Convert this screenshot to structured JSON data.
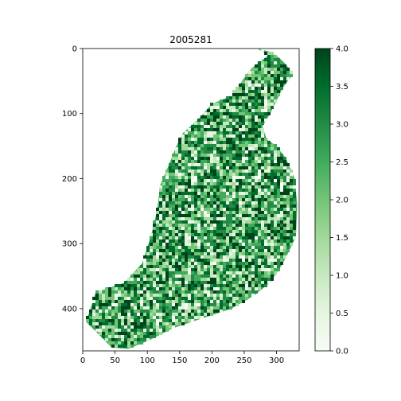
{
  "chart_data": [
    {
      "type": "heatmap",
      "title": "2005281",
      "xlabel": "",
      "ylabel": "",
      "xlim": [
        0,
        335
      ],
      "ylim": [
        465,
        0
      ],
      "xticks": [
        "0",
        "50",
        "100",
        "150",
        "200",
        "250",
        "300"
      ],
      "yticks": [
        "0",
        "100",
        "200",
        "300",
        "400"
      ],
      "grid": false,
      "colormap": "Greens",
      "value_range": [
        0,
        4
      ],
      "colors": {
        "low": "#f7fcf5",
        "mid": "#74c476",
        "high": "#00441b"
      },
      "region_outline_xy": [
        [
          270,
          0
        ],
        [
          288,
          10
        ],
        [
          275,
          20
        ],
        [
          262,
          30
        ],
        [
          250,
          45
        ],
        [
          240,
          60
        ],
        [
          225,
          75
        ],
        [
          200,
          85
        ],
        [
          178,
          110
        ],
        [
          155,
          130
        ],
        [
          145,
          150
        ],
        [
          135,
          175
        ],
        [
          120,
          210
        ],
        [
          115,
          250
        ],
        [
          105,
          290
        ],
        [
          92,
          330
        ],
        [
          65,
          360
        ],
        [
          20,
          375
        ],
        [
          12,
          400
        ],
        [
          5,
          420
        ],
        [
          20,
          435
        ],
        [
          45,
          460
        ],
        [
          70,
          462
        ],
        [
          100,
          450
        ],
        [
          140,
          430
        ],
        [
          185,
          415
        ],
        [
          230,
          400
        ],
        [
          265,
          380
        ],
        [
          290,
          360
        ],
        [
          310,
          330
        ],
        [
          330,
          290
        ],
        [
          332,
          240
        ],
        [
          328,
          200
        ],
        [
          315,
          170
        ],
        [
          300,
          150
        ],
        [
          285,
          140
        ],
        [
          278,
          120
        ],
        [
          290,
          100
        ],
        [
          300,
          80
        ],
        [
          310,
          60
        ],
        [
          325,
          40
        ],
        [
          315,
          25
        ],
        [
          305,
          15
        ],
        [
          290,
          5
        ]
      ]
    },
    {
      "type": "colorbar",
      "range": [
        0,
        4
      ],
      "ticks": [
        "0.0",
        "0.5",
        "1.0",
        "1.5",
        "2.0",
        "2.5",
        "3.0",
        "3.5",
        "4.0"
      ]
    }
  ]
}
